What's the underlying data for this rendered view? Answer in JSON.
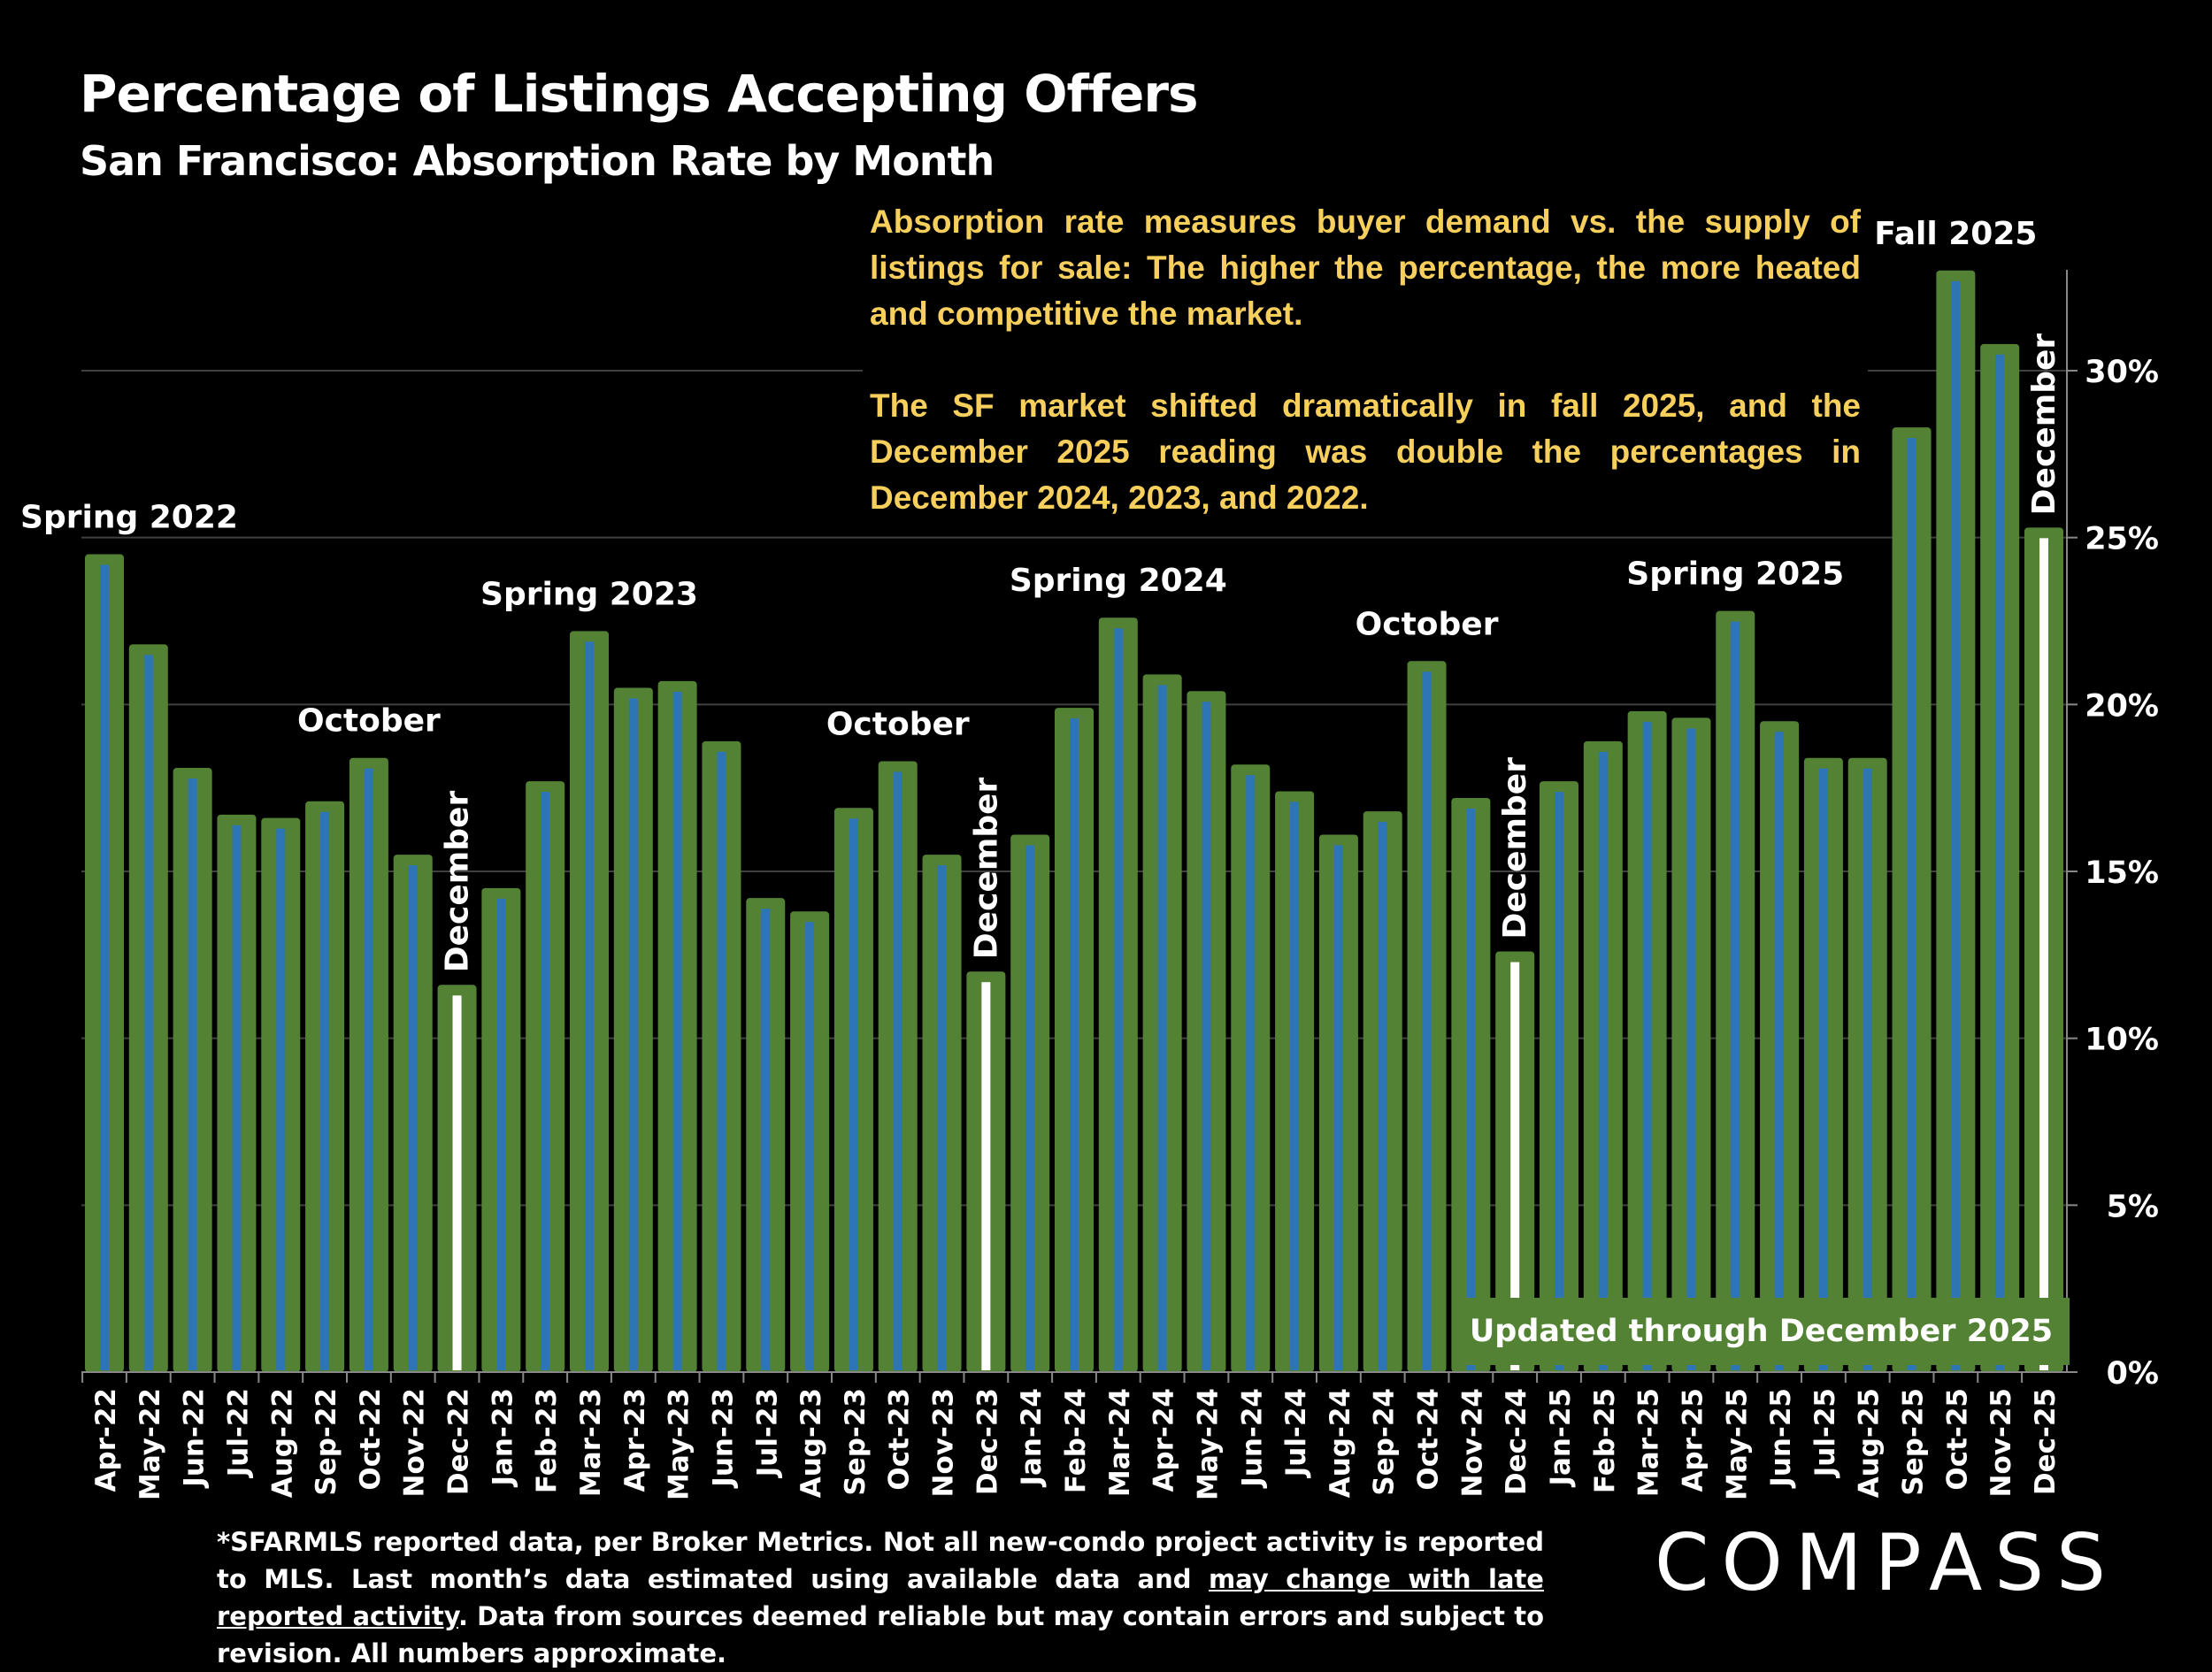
{
  "title": "Percentage of Listings Accepting Offers",
  "subtitle": "San Francisco:  Absorption Rate by Month",
  "note": {
    "paragraph1": "Absorption rate measures buyer demand vs. the supply of listings for sale: The higher the percentage, the more heated and competitive the market.",
    "paragraph2": "The SF market shifted dramatically in fall 2025, and the December 2025 reading was double the percentages in December 2024, 2023, and 2022."
  },
  "updated_label": "Updated through December 2025",
  "footer": {
    "part1": "*SFARMLS reported data, per Broker Metrics. Not all new-condo project activity is reported to MLS. Last month’s data estimated using available data and ",
    "underlined": "may change with late reported activity",
    "part2": ". Data from sources deemed reliable but may contain errors and subject to revision. All numbers approximate."
  },
  "logo": "COMPASS",
  "colors": {
    "bar_outer": "#548235",
    "bar_inner": "#2E75B6",
    "december_inner": "#FFFFFF",
    "note_text": "#F7CF5C",
    "grid": "#404040"
  },
  "chart_data": {
    "type": "bar",
    "categories": [
      "Apr-22",
      "May-22",
      "Jun-22",
      "Jul-22",
      "Aug-22",
      "Sep-22",
      "Oct-22",
      "Nov-22",
      "Dec-22",
      "Jan-23",
      "Feb-23",
      "Mar-23",
      "Apr-23",
      "May-23",
      "Jun-23",
      "Jul-23",
      "Aug-23",
      "Sep-23",
      "Oct-23",
      "Nov-23",
      "Dec-23",
      "Jan-24",
      "Feb-24",
      "Mar-24",
      "Apr-24",
      "May-24",
      "Jun-24",
      "Jul-24",
      "Aug-24",
      "Sep-24",
      "Oct-24",
      "Nov-24",
      "Dec-24",
      "Jan-25",
      "Feb-25",
      "Mar-25",
      "Apr-25",
      "May-25",
      "Jun-25",
      "Jul-25",
      "Aug-25",
      "Sep-25",
      "Oct-25",
      "Nov-25",
      "Dec-25"
    ],
    "values": [
      24.5,
      21.8,
      18.1,
      16.7,
      16.6,
      17.1,
      18.4,
      15.5,
      11.6,
      14.5,
      17.7,
      22.2,
      20.5,
      20.7,
      18.9,
      14.2,
      13.8,
      16.9,
      18.3,
      15.5,
      12.0,
      16.1,
      19.9,
      22.6,
      20.9,
      20.4,
      18.2,
      17.4,
      16.1,
      16.8,
      21.3,
      17.2,
      12.6,
      17.7,
      18.9,
      19.8,
      19.6,
      22.8,
      19.5,
      18.4,
      18.4,
      28.3,
      33.0,
      30.8,
      25.3
    ],
    "ylim": [
      0,
      33
    ],
    "yticks": [
      "0%",
      "5%",
      "10%",
      "15%",
      "20%",
      "25%",
      "30%"
    ],
    "ytick_values": [
      0,
      5,
      10,
      15,
      20,
      25,
      30
    ],
    "y_axis_side": "right",
    "grid": true,
    "annotations": [
      {
        "text": "Spring 2022",
        "category": "Apr-22",
        "rotated": false
      },
      {
        "text": "October",
        "category": "Oct-22",
        "rotated": false
      },
      {
        "text": "December",
        "category": "Dec-22",
        "rotated": true
      },
      {
        "text": "Spring 2023",
        "category": "Mar-23",
        "rotated": false
      },
      {
        "text": "October",
        "category": "Oct-23",
        "rotated": false
      },
      {
        "text": "December",
        "category": "Dec-23",
        "rotated": true
      },
      {
        "text": "Spring 2024",
        "category": "Mar-24",
        "rotated": false
      },
      {
        "text": "October",
        "category": "Oct-24",
        "rotated": false
      },
      {
        "text": "December",
        "category": "Dec-24",
        "rotated": true
      },
      {
        "text": "Spring 2025",
        "category": "May-25",
        "rotated": false
      },
      {
        "text": "Fall 2025",
        "category": "Oct-25",
        "rotated": false
      },
      {
        "text": "December",
        "category": "Dec-25",
        "rotated": true
      }
    ]
  }
}
